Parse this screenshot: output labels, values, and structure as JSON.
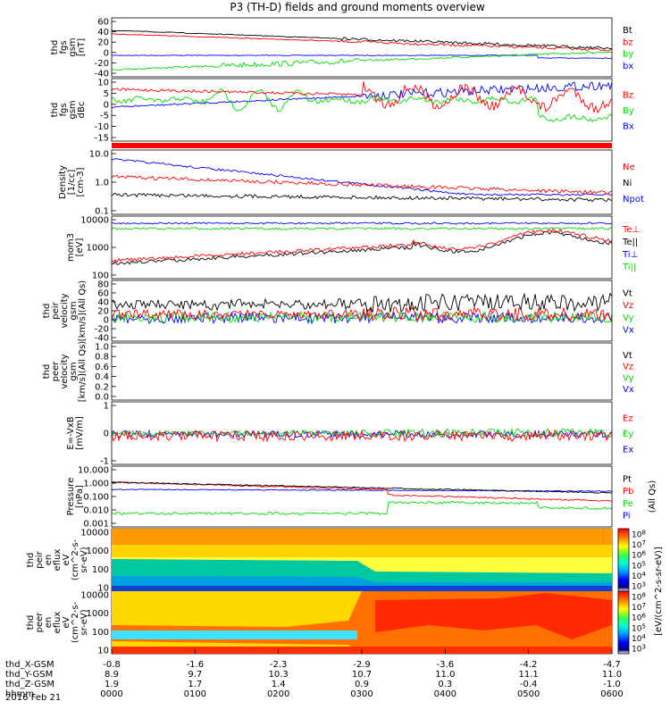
{
  "title": "P3 (TH-D) fields and ground moments overview",
  "colors": {
    "black": "#000000",
    "red": "#ff0000",
    "green": "#00dd00",
    "blue": "#0000ff"
  },
  "chart_data": [
    {
      "type": "line",
      "ylabel": [
        "thd",
        "fgs",
        "gsm",
        "[nT]"
      ],
      "yticks": [
        "60",
        "40",
        "20",
        "0",
        "-20",
        "-40"
      ],
      "legend": [
        {
          "label": "Bt",
          "color": "#000000"
        },
        {
          "label": "bz",
          "color": "#ff0000"
        },
        {
          "label": "by",
          "color": "#00dd00"
        },
        {
          "label": "bx",
          "color": "#0000ff"
        }
      ]
    },
    {
      "type": "line",
      "ylabel": [
        "thd",
        "fgs",
        "gsm",
        "dBc"
      ],
      "yticks": [
        "10",
        "5",
        "0",
        "-5",
        "-10",
        "-15"
      ],
      "legend": [
        {
          "label": "Bz",
          "color": "#ff0000"
        },
        {
          "label": "By",
          "color": "#00dd00"
        },
        {
          "label": "Bx",
          "color": "#0000ff"
        }
      ]
    },
    {
      "type": "line",
      "ylabel": [
        "Density",
        "[1/cc]",
        "[cm-3]"
      ],
      "yticks": [
        "10.0",
        "1.0",
        "0.1"
      ],
      "legend": [
        {
          "label": "Ne",
          "color": "#ff0000"
        },
        {
          "label": "Ni",
          "color": "#000000"
        },
        {
          "label": "Npot",
          "color": "#0000ff"
        }
      ]
    },
    {
      "type": "line",
      "ylabel": [
        "mom3",
        "[eV]"
      ],
      "yticks": [
        "10000",
        "1000",
        "100"
      ],
      "legend": [
        {
          "label": "Te⊥",
          "color": "#ff0000"
        },
        {
          "label": "Te||",
          "color": "#000000"
        },
        {
          "label": "Ti⊥",
          "color": "#0000ff"
        },
        {
          "label": "Ti||",
          "color": "#00dd00"
        }
      ]
    },
    {
      "type": "line",
      "ylabel": [
        "thd",
        "peir",
        "velocity",
        "gsm",
        "[km/s](All Qs)"
      ],
      "yticks": [
        "80",
        "60",
        "40",
        "20",
        "0",
        "-20",
        "-40"
      ],
      "legend": [
        {
          "label": "Vt",
          "color": "#000000"
        },
        {
          "label": "Vz",
          "color": "#ff0000"
        },
        {
          "label": "Vy",
          "color": "#00dd00"
        },
        {
          "label": "Vx",
          "color": "#0000ff"
        }
      ]
    },
    {
      "type": "line",
      "ylabel": [
        "thd",
        "peer",
        "velocity",
        "gsm",
        "[km/s](All Qs)"
      ],
      "yticks": [
        "1.0",
        "0.8",
        "0.6",
        "0.4",
        "0.2",
        "0.0"
      ],
      "legend": [
        {
          "label": "Vt",
          "color": "#000000"
        },
        {
          "label": "Vz",
          "color": "#ff0000"
        },
        {
          "label": "Vy",
          "color": "#00dd00"
        },
        {
          "label": "Vx",
          "color": "#0000ff"
        }
      ]
    },
    {
      "type": "line",
      "ylabel": [
        "E=-VxB",
        "[mV/m]"
      ],
      "yticks": [
        "1",
        "0",
        "-1"
      ],
      "legend": [
        {
          "label": "Ez",
          "color": "#ff0000"
        },
        {
          "label": "Ey",
          "color": "#00dd00"
        },
        {
          "label": "Ex",
          "color": "#0000ff"
        }
      ]
    },
    {
      "type": "line",
      "ylabel": [
        "Pressure",
        "[nPa]"
      ],
      "yticks": [
        "10.000",
        "1.000",
        "0.100",
        "0.010",
        "0.001"
      ],
      "legend": [
        {
          "label": "Pt",
          "color": "#000000"
        },
        {
          "label": "Pb",
          "color": "#ff0000"
        },
        {
          "label": "Pe",
          "color": "#00dd00"
        },
        {
          "label": "Pi",
          "color": "#0000ff"
        }
      ],
      "side_label": "(All Qs)"
    },
    {
      "type": "heatmap",
      "ylabel": [
        "thd",
        "peir",
        "en",
        "eflux",
        "eV",
        "(cm^2-s-",
        "sr-eV)"
      ],
      "yticks": [
        "10000",
        "1000",
        "100",
        "10"
      ]
    },
    {
      "type": "heatmap",
      "ylabel": [
        "thd",
        "peer",
        "en",
        "eflux",
        "eV",
        "(cm^2-s-",
        "sr-eV)"
      ],
      "yticks": [
        "10000",
        "1000",
        "100",
        "10"
      ]
    }
  ],
  "colorbar": {
    "ticks": [
      "10^8",
      "10^7",
      "10^6",
      "10^5",
      "10^4",
      "10^3"
    ],
    "label": "[eV/(cm^2-s-sr-eV)]"
  },
  "xaxis": {
    "rows": [
      {
        "label": "thd_X-GSM",
        "values": [
          "-0.8",
          "-1.6",
          "-2.3",
          "-2.9",
          "-3.6",
          "-4.2",
          "-4.7"
        ]
      },
      {
        "label": "thd_Y-GSM",
        "values": [
          "8.9",
          "9.7",
          "10.3",
          "10.7",
          "11.0",
          "11.1",
          "11.0"
        ]
      },
      {
        "label": "thd_Z-GSM",
        "values": [
          "1.9",
          "1.7",
          "1.4",
          "0.9",
          "0.3",
          "-0.4",
          "-1.0"
        ]
      },
      {
        "label": "hhmm",
        "values": [
          "0000",
          "0100",
          "0200",
          "0300",
          "0400",
          "0500",
          "0600"
        ]
      }
    ],
    "date": "2016 Feb 21"
  }
}
